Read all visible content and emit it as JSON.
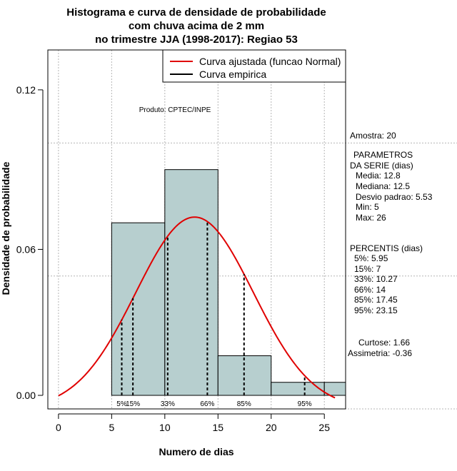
{
  "chart_data": {
    "type": "histogram",
    "title_lines": [
      "Histograma e curva de densidade de probabilidade",
      "com chuva acima de 2 mm",
      "no trimestre JJA (1998-2017): Regiao 53"
    ],
    "xlabel": "Numero de dias",
    "ylabel": "Densidade de probabilidade",
    "xlim": [
      -1,
      27
    ],
    "ylim": [
      0,
      0.135
    ],
    "xticks": [
      0,
      5,
      10,
      15,
      20,
      25
    ],
    "yticks": [
      0.0,
      0.06,
      0.12
    ],
    "ytick_labels": [
      "0.00",
      "0.06",
      "0.12"
    ],
    "grid_x": [
      0,
      5,
      10,
      15,
      20,
      25
    ],
    "grid_y": [
      0,
      0.05,
      0.1,
      0.15
    ],
    "bins": [
      {
        "start": 5,
        "end": 10,
        "density": 0.07
      },
      {
        "start": 10,
        "end": 15,
        "density": 0.09
      },
      {
        "start": 15,
        "end": 20,
        "density": 0.02
      },
      {
        "start": 20,
        "end": 25,
        "density": 0.01
      },
      {
        "start": 25,
        "end": 30,
        "density": 0.01
      }
    ],
    "normal_fit": {
      "mean": 12.8,
      "sd": 5.53,
      "x_range": [
        0,
        26
      ]
    },
    "percentile_lines": [
      {
        "label": "5%",
        "x": 5.95
      },
      {
        "label": "15%",
        "x": 7
      },
      {
        "label": "33%",
        "x": 10.27
      },
      {
        "label": "66%",
        "x": 14
      },
      {
        "label": "85%",
        "x": 17.45
      },
      {
        "label": "95%",
        "x": 23.15
      }
    ],
    "legend": [
      {
        "label": "Curva ajustada (funcao Normal)",
        "color": "#e00000"
      },
      {
        "label": "Curva empirica",
        "color": "#000000"
      }
    ],
    "legend_position": "top-right",
    "annotation_produto": "Produto: CPTEC/INPE",
    "colors": {
      "bar_fill": "#b7cfcf",
      "bar_stroke": "#000000",
      "curve": "#e00000",
      "grid": "#b5b5b5"
    }
  },
  "stats_panel": {
    "amostra": "Amostra: 20",
    "parametros": [
      "PARAMETROS",
      "DA SERIE (dias)",
      "Media: 12.8",
      "Mediana: 12.5",
      "Desvio padrao: 5.53",
      "Min: 5",
      "Max: 26"
    ],
    "percentis": [
      "PERCENTIS (dias)",
      "5%: 5.95",
      "15%: 7",
      "33%: 10.27",
      "66%: 14",
      "85%: 17.45",
      "95%: 23.15"
    ],
    "curtose": "Curtose: 1.66",
    "assimetria": "Assimetria: -0.36"
  }
}
